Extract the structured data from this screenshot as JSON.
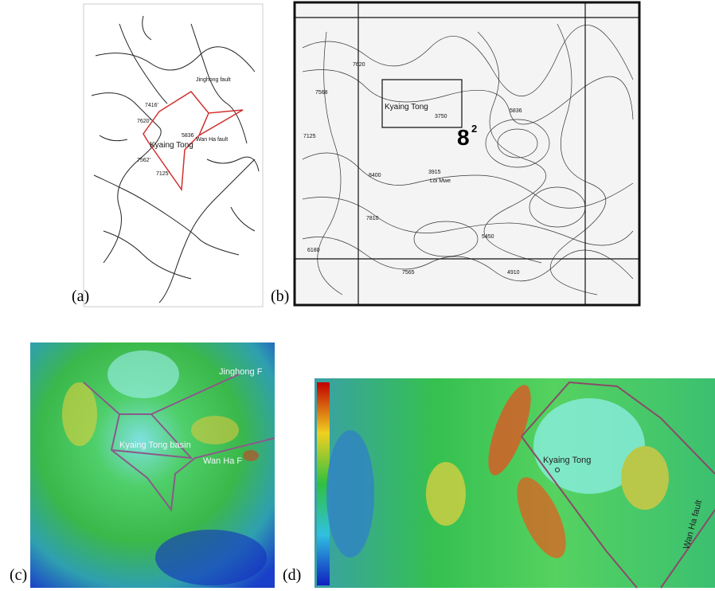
{
  "panels": [
    {
      "label": "(a)",
      "annotations": [
        "Jinghong fault",
        "Wan Ha fault",
        "Kyaing Tong",
        "7416'",
        "7620'",
        "5836",
        "7562'",
        "7125'"
      ]
    },
    {
      "label": "(b)",
      "annotations": [
        "Kyaing Tong",
        "8",
        "2",
        "7620",
        "7568",
        "7125",
        "3750",
        "5836",
        "8400",
        "3915",
        "7810",
        "5450",
        "6180",
        "7565",
        "4910",
        "Loi Mwe"
      ]
    },
    {
      "label": "(c)",
      "annotations": [
        "Jinghong F",
        "Kyaing Tong basin",
        "Wan Ha F"
      ]
    },
    {
      "label": "(d)",
      "annotations": [
        "Kyaing Tong",
        "Wan Ha fault"
      ]
    }
  ]
}
